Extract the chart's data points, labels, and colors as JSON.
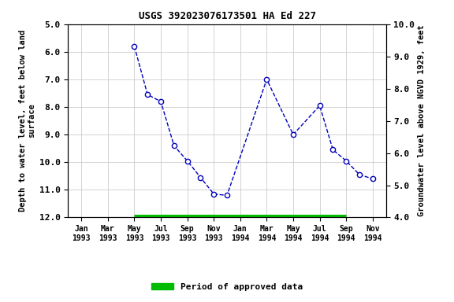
{
  "title": "USGS 392023076173501 HA Ed 227",
  "ylabel_left": "Depth to water level, feet below land\nsurface",
  "ylabel_right": "Groundwater level above NGVD 1929, feet",
  "x_tick_labels": [
    "Jan\n1993",
    "Mar\n1993",
    "May\n1993",
    "Jul\n1993",
    "Sep\n1993",
    "Nov\n1993",
    "Jan\n1994",
    "Mar\n1994",
    "May\n1994",
    "Jul\n1994",
    "Sep\n1994",
    "Nov\n1994"
  ],
  "x_tick_pos": [
    0,
    1,
    2,
    3,
    4,
    5,
    6,
    7,
    8,
    9,
    10,
    11
  ],
  "data_x": [
    2,
    2.5,
    3,
    3.5,
    4,
    4.5,
    5,
    5.5,
    7,
    8,
    9,
    9.5,
    10,
    10.5,
    11
  ],
  "data_y": [
    5.8,
    7.55,
    7.8,
    9.4,
    9.95,
    10.55,
    11.15,
    11.2,
    7.0,
    9.0,
    7.95,
    9.55,
    9.95,
    10.45,
    10.6
  ],
  "ylim_left_top": 5.0,
  "ylim_left_bottom": 12.0,
  "ylim_right_top": 10.0,
  "ylim_right_bottom": 4.0,
  "yticks_left": [
    5.0,
    6.0,
    7.0,
    8.0,
    9.0,
    10.0,
    11.0,
    12.0
  ],
  "yticks_right": [
    10.0,
    9.0,
    8.0,
    7.0,
    6.0,
    5.0,
    4.0
  ],
  "line_color": "#0000bb",
  "marker_facecolor": "#ffffff",
  "marker_edgecolor": "#0000bb",
  "bar_color": "#00bb00",
  "bar_xstart": 2,
  "bar_xend": 10,
  "legend_label": "Period of approved data",
  "bg_color": "#ffffff",
  "grid_color": "#cccccc",
  "title_fontsize": 9,
  "axis_fontsize": 7.5,
  "tick_fontsize": 8
}
